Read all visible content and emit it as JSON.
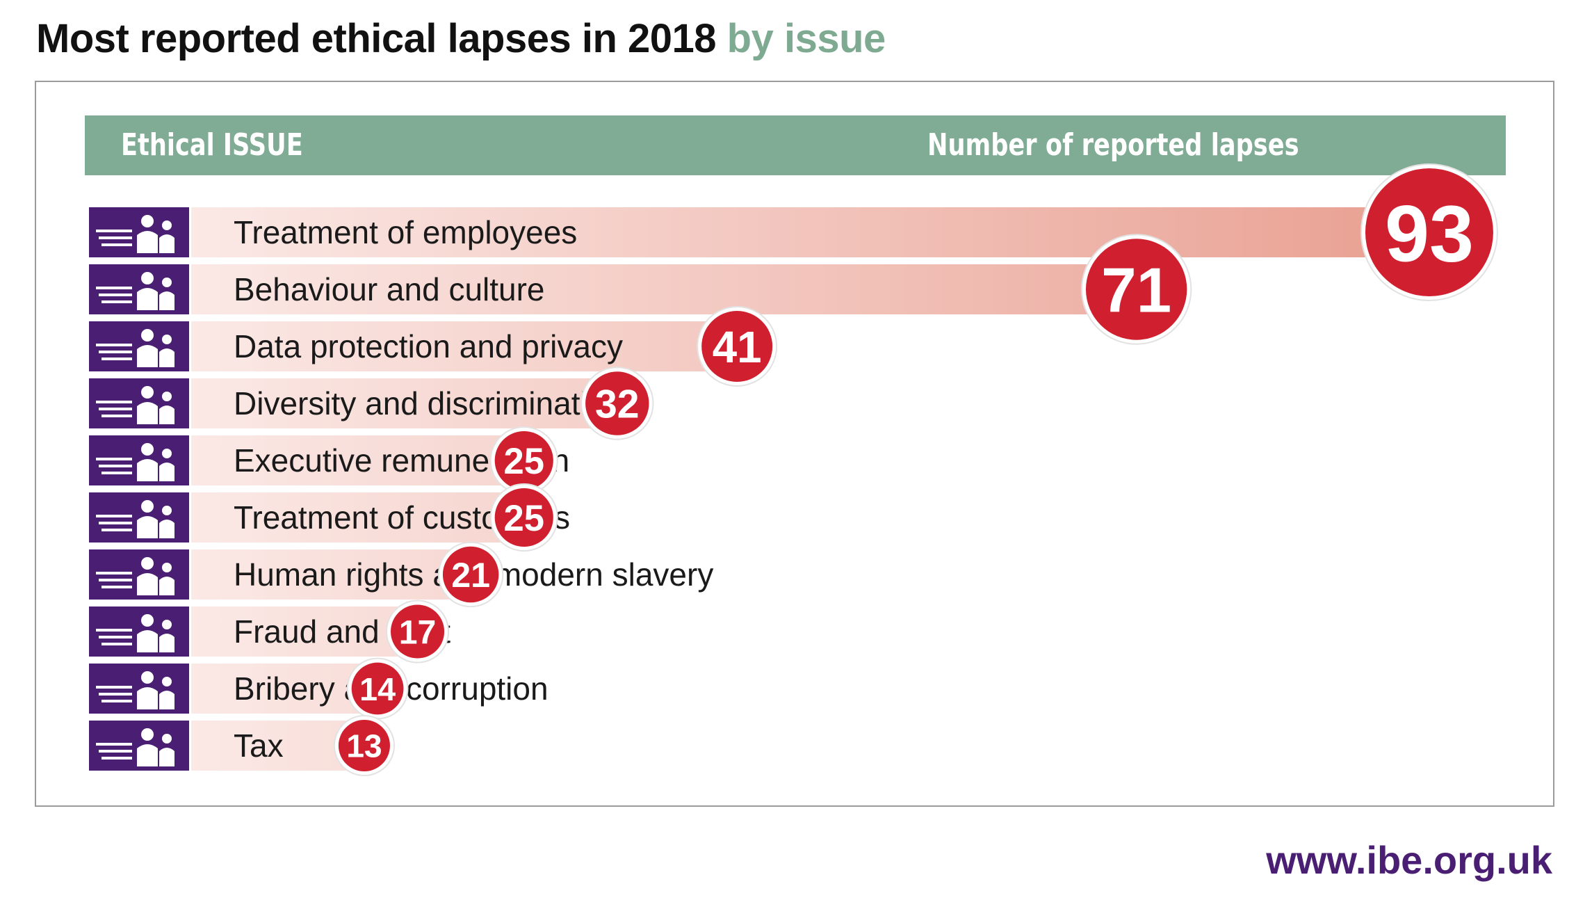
{
  "title": {
    "main": "Most reported ethical lapses in 2018",
    "sub": "by issue"
  },
  "header": {
    "issue_label": "Ethical ISSUE",
    "count_label": "Number of reported lapses"
  },
  "footer": {
    "url": "www.ibe.org.uk"
  },
  "colors": {
    "accent_green": "#80ab94",
    "icon_purple": "#4a1f73",
    "badge_red": "#d0202f",
    "bar_light": "#fbe9e6",
    "bar_dark": "#e9a193"
  },
  "chart_data": {
    "type": "bar",
    "orientation": "horizontal",
    "title": "Most reported ethical lapses in 2018 by issue",
    "categories": [
      "Treatment of employees",
      "Behaviour and culture",
      "Data protection and privacy",
      "Diversity and discrimination",
      "Executive remuneration",
      "Treatment of customers",
      "Human rights and modern slavery",
      "Fraud and theft",
      "Bribery and corruption",
      "Tax"
    ],
    "values": [
      93,
      71,
      41,
      32,
      25,
      25,
      21,
      17,
      14,
      13
    ],
    "icons": [
      "employees-icon",
      "culture-icon",
      "privacy-lock-icon",
      "discrimination-icon",
      "banknote-icon",
      "customers-icon",
      "family-icon",
      "fraud-question-icon",
      "bribe-handshake-icon",
      "tax-bag-icon"
    ],
    "xlabel": "Number of reported lapses",
    "ylabel": "Ethical ISSUE",
    "grid": false,
    "legend": "none"
  }
}
